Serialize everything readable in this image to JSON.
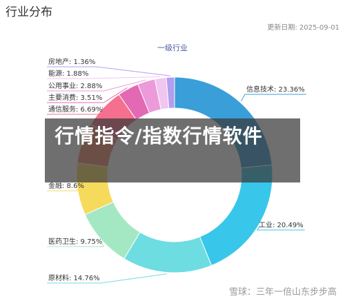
{
  "header": {
    "title": "行业分布",
    "updated": "更新日期: 2025-09-01"
  },
  "chart_data": {
    "type": "pie",
    "title": "一级行业",
    "donut": true,
    "categories": [
      "信息技术: 23.36%",
      "工业: 20.49%",
      "原材料: 14.76%",
      "医药卫生: 9.75%",
      "金融: 8.6%",
      null,
      "通信服务: 6.69%",
      "主要消费: 3.51%",
      "公用事业: 2.88%",
      "能源: 1.88%",
      "房地产: 1.36%"
    ],
    "values": [
      23.36,
      20.49,
      14.76,
      9.75,
      8.6,
      6.72,
      6.69,
      3.51,
      2.88,
      1.88,
      1.36
    ],
    "colors": [
      "#3a9fd8",
      "#38c6ea",
      "#6ddde2",
      "#a4e8c3",
      "#f6da5c",
      "#f08a6a",
      "#f56f8e",
      "#e469b4",
      "#ec9ad9",
      "#f0c6f1",
      "#b39df0"
    ]
  },
  "overlay": {
    "banner": "行情指令/指数行情软件",
    "watermark": "雪球：三年一倍山东步步高"
  }
}
